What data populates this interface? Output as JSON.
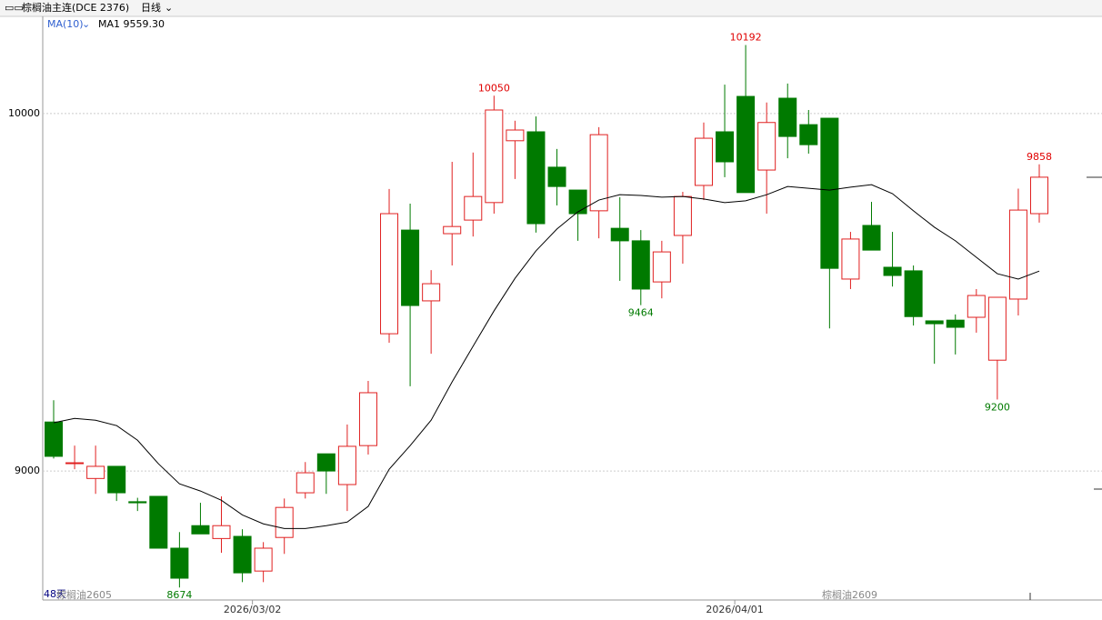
{
  "header": {
    "title": "棕榈油主连(DCE 2376)",
    "period": "日线"
  },
  "chart_data": {
    "type": "candlestick",
    "indicator": "MA(10)",
    "indicator_value": "MA1 9559.30",
    "categories": [
      null,
      null,
      null,
      null,
      null,
      null,
      null,
      null,
      null,
      null,
      "2026/03/02",
      null,
      null,
      null,
      null,
      null,
      null,
      null,
      null,
      null,
      null,
      null,
      null,
      null,
      null,
      null,
      null,
      null,
      null,
      null,
      null,
      null,
      null,
      "2026/04/01",
      null,
      null,
      null,
      null,
      null,
      null,
      null,
      null,
      null,
      null,
      null,
      null,
      null,
      null
    ],
    "open": [
      9137,
      9023,
      8979,
      9013,
      8914,
      8929,
      8784,
      8847,
      8811,
      8817,
      8720,
      8814,
      8939,
      9048,
      8962,
      9071,
      9384,
      9674,
      9476,
      9664,
      9702,
      9751,
      9924,
      9949,
      9850,
      9786,
      9728,
      9679,
      9644,
      9529,
      9659,
      9799,
      9949,
      10048,
      9842,
      10043,
      9969,
      9987,
      9537,
      9687,
      9570,
      9560,
      9420,
      9422,
      9430,
      9310,
      9481,
      9720
    ],
    "high": [
      9198,
      9071,
      9071,
      9013,
      8925,
      8929,
      8829,
      8911,
      8929,
      8837,
      8801,
      8923,
      9025,
      9048,
      9130,
      9252,
      9789,
      9748,
      9562,
      9865,
      9891,
      10050,
      9980,
      9992,
      9901,
      9786,
      9962,
      9766,
      9674,
      9644,
      9781,
      9975,
      10081,
      10192,
      10031,
      10084,
      10010,
      9987,
      9669,
      9753,
      9669,
      9575,
      9420,
      9438,
      9509,
      9486,
      9790,
      9858
    ],
    "low": [
      9035,
      9005,
      8936,
      8916,
      8888,
      8784,
      8674,
      8824,
      8771,
      8689,
      8689,
      8768,
      8923,
      8936,
      8888,
      9046,
      9359,
      9237,
      9328,
      9575,
      9656,
      9720,
      9817,
      9667,
      9743,
      9644,
      9651,
      9532,
      9464,
      9483,
      9580,
      9758,
      9822,
      9779,
      9720,
      9875,
      9888,
      9399,
      9509,
      9618,
      9516,
      9407,
      9300,
      9326,
      9387,
      9200,
      9435,
      9695
    ],
    "close": [
      9041,
      9023,
      9013,
      8939,
      8911,
      8784,
      8700,
      8824,
      8847,
      8715,
      8784,
      8898,
      8995,
      9000,
      9069,
      9219,
      9720,
      9463,
      9524,
      9684,
      9768,
      10010,
      9954,
      9692,
      9796,
      9720,
      9941,
      9644,
      9509,
      9613,
      9768,
      9931,
      9865,
      9779,
      9975,
      9936,
      9913,
      9567,
      9649,
      9618,
      9547,
      9432,
      9412,
      9402,
      9491,
      9486,
      9730,
      9822
    ],
    "up_color": "#e02020",
    "down_color": "#007a00",
    "series": [
      {
        "name": "MA1",
        "color": "#000000",
        "values": [
          9135,
          9147,
          9142,
          9127,
          9086,
          9020,
          8964,
          8944,
          8918,
          8877,
          8852,
          8839,
          8839,
          8847,
          8857,
          8901,
          9005,
          9071,
          9142,
          9249,
          9349,
          9448,
          9539,
          9616,
          9677,
          9725,
          9758,
          9773,
          9771,
          9766,
          9768,
          9761,
          9751,
          9756,
          9773,
          9796,
          9791,
          9786,
          9794,
          9801,
          9776,
          9728,
          9682,
          9644,
          9598,
          9552,
          9537,
          9559.3
        ]
      }
    ],
    "labeled_highs": [
      21,
      33,
      47
    ],
    "labeled_lows": [
      6,
      28,
      45
    ],
    "ylim": [
      8639,
      10272
    ],
    "yticks": [
      9000,
      10000
    ],
    "grid": true,
    "footer": {
      "days": "48天",
      "contract_left": "棕榈油2605",
      "contract_right": "棕榈油2609"
    }
  }
}
